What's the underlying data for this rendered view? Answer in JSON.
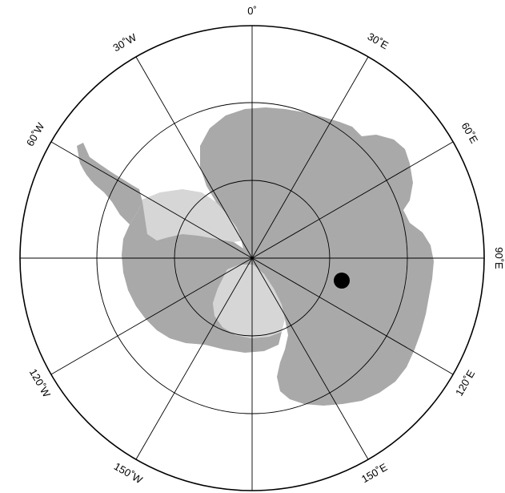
{
  "map": {
    "projection": "south-polar-stereographic",
    "colors": {
      "land": "#a9a9a9",
      "ice_shelf": "#d6d6d6",
      "graticule": "#000000",
      "marker": "#000000",
      "background": "#ffffff"
    },
    "parallels": [
      "circle-inner",
      "circle-middle"
    ],
    "meridian_labels": [
      {
        "id": "0",
        "text": "0˚"
      },
      {
        "id": "30e",
        "text": "30˚E"
      },
      {
        "id": "60e",
        "text": "60˚E"
      },
      {
        "id": "90e",
        "text": "90˚E"
      },
      {
        "id": "120e",
        "text": "120˚E"
      },
      {
        "id": "150e",
        "text": "150˚E"
      },
      {
        "id": "150w",
        "text": "150˚W"
      },
      {
        "id": "120w",
        "text": "120˚W"
      },
      {
        "id": "60w",
        "text": "60˚W"
      },
      {
        "id": "30w",
        "text": "30˚W"
      }
    ],
    "marker": {
      "icon": "filled-circle",
      "lon_deg_e": 106,
      "lat_deg_s": 75
    }
  }
}
